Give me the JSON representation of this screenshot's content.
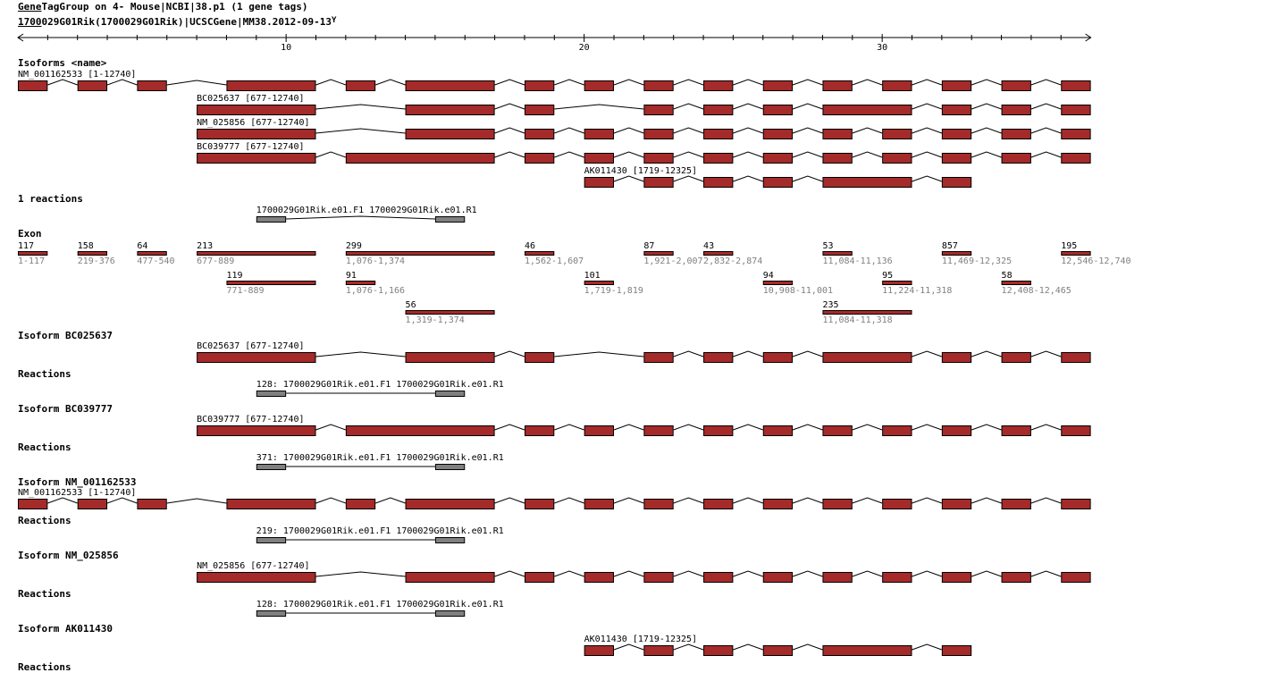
{
  "header": {
    "title_link": "Gene",
    "title_rest": "TagGroup on 4- Mouse|NCBI|38.p1 (1 gene tags)",
    "gene_link": "1700",
    "gene_rest": "029G01Rik(1700029G01Rik)|UCSCGene|MM38.2012-09-13",
    "icon": "filter-y-icon"
  },
  "axis": {
    "labels": [
      "10",
      "20",
      "30"
    ]
  },
  "colors": {
    "exon": "#a52a2a",
    "primer": "#808080",
    "range_text": "#808080"
  },
  "sections": {
    "isoforms_heading": "Isoforms <name>",
    "reactions_heading": "1 reactions",
    "exon_heading": "Exon"
  },
  "exons": [
    {
      "size": "117",
      "range": "1-117"
    },
    {
      "size": "158",
      "range": "219-376"
    },
    {
      "size": "64",
      "range": "477-540"
    },
    {
      "size": "213",
      "range": "677-889"
    },
    {
      "size": "119",
      "range": "771-889"
    },
    {
      "size": "299",
      "range": "1,076-1,374"
    },
    {
      "size": "91",
      "range": "1,076-1,166"
    },
    {
      "size": "56",
      "range": "1,319-1,374"
    },
    {
      "size": "46",
      "range": "1,562-1,607"
    },
    {
      "size": "101",
      "range": "1,719-1,819"
    },
    {
      "size": "87",
      "range": "1,921-2,007"
    },
    {
      "size": "43",
      "range": "2,832-2,874"
    },
    {
      "size": "94",
      "range": "10,908-11,001"
    },
    {
      "size": "53",
      "range": "11,084-11,136"
    },
    {
      "size": "235",
      "range": "11,084-11,318"
    },
    {
      "size": "95",
      "range": "11,224-11,318"
    },
    {
      "size": "857",
      "range": "11,469-12,325"
    },
    {
      "size": "58",
      "range": "12,408-12,465"
    },
    {
      "size": "195",
      "range": "12,546-12,740"
    }
  ],
  "isoforms": [
    {
      "name": "NM_001162533",
      "label": "NM_001162533 [1-12740]",
      "exons": [
        0,
        1,
        2,
        4,
        6,
        7,
        8,
        9,
        10,
        11,
        12,
        13,
        15,
        16,
        17,
        18
      ]
    },
    {
      "name": "BC025637",
      "label": "BC025637 [677-12740]",
      "exons": [
        3,
        7,
        8,
        10,
        11,
        12,
        14,
        16,
        17,
        18
      ]
    },
    {
      "name": "NM_025856",
      "label": "NM_025856 [677-12740]",
      "exons": [
        3,
        7,
        8,
        9,
        10,
        11,
        12,
        13,
        15,
        16,
        17,
        18
      ]
    },
    {
      "name": "BC039777",
      "label": "BC039777 [677-12740]",
      "exons": [
        3,
        5,
        8,
        9,
        10,
        11,
        12,
        13,
        15,
        16,
        17,
        18
      ]
    },
    {
      "name": "AK011430",
      "label": "AK011430 [1719-12325]",
      "exons": [
        9,
        10,
        11,
        12,
        14,
        16
      ]
    }
  ],
  "reaction": {
    "label": "1700029G01Rik.e01.F1 1700029G01Rik.e01.R1"
  },
  "isoform_details": [
    {
      "heading": "Isoform BC025637",
      "isoform": 1,
      "reactions_heading": "Reactions",
      "reaction_label": "128: 1700029G01Rik.e01.F1 1700029G01Rik.e01.R1"
    },
    {
      "heading": "Isoform BC039777",
      "isoform": 3,
      "reactions_heading": "Reactions",
      "reaction_label": "371: 1700029G01Rik.e01.F1 1700029G01Rik.e01.R1"
    },
    {
      "heading": "Isoform NM_001162533",
      "isoform": 0,
      "reactions_heading": "Reactions",
      "reaction_label": "219: 1700029G01Rik.e01.F1 1700029G01Rik.e01.R1"
    },
    {
      "heading": "Isoform NM_025856",
      "isoform": 2,
      "reactions_heading": "Reactions",
      "reaction_label": "128: 1700029G01Rik.e01.F1 1700029G01Rik.e01.R1"
    },
    {
      "heading": "Isoform AK011430",
      "isoform": 4,
      "reactions_heading": "Reactions",
      "reaction_label": null
    }
  ]
}
